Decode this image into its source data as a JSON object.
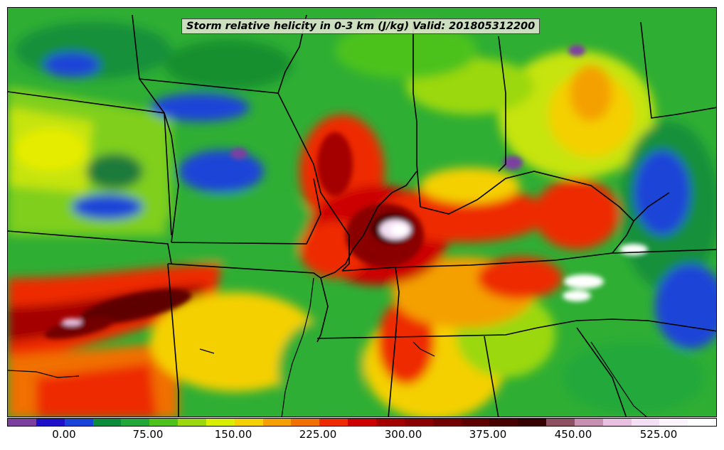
{
  "title": "Storm relative helicity in 0-3 km (J/kg) Valid: 201805312200",
  "colorbar": {
    "colors": [
      "#7b3fa0",
      "#1e10c8",
      "#1a44d8",
      "#0a8c3a",
      "#22a83a",
      "#4cc21a",
      "#9bd810",
      "#d8f000",
      "#f4d000",
      "#f4a000",
      "#f07000",
      "#ee2a00",
      "#cc0000",
      "#a40000",
      "#8a0000",
      "#720000",
      "#5e0000",
      "#480000",
      "#360000",
      "#8c5060",
      "#c890b0",
      "#e8c0e0",
      "#f4e0f4",
      "#fbf4fb",
      "#ffffff"
    ],
    "labels": [
      "0.00",
      "75.00",
      "150.00",
      "225.00",
      "300.00",
      "375.00",
      "450.00",
      "525.00"
    ]
  },
  "map": {
    "features": [
      "state-borders",
      "coastline",
      "helicity-field"
    ]
  }
}
